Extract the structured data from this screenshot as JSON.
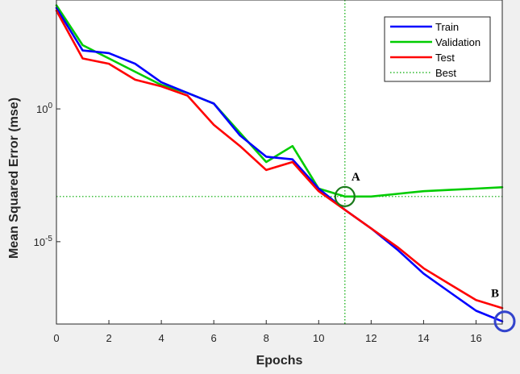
{
  "chart_data": {
    "type": "line",
    "title": "",
    "xlabel": "Epochs",
    "ylabel": "Mean Squared Error  (mse)",
    "xlim": [
      0,
      17
    ],
    "ylim_log10": [
      -8.1,
      4.1
    ],
    "yscale": "log",
    "x_ticks": [
      0,
      2,
      4,
      6,
      8,
      10,
      12,
      14,
      16
    ],
    "x_tick_labels": [
      "0",
      "2",
      "4",
      "6",
      "8",
      "10",
      "12",
      "14",
      "16"
    ],
    "y_ticks_log10": [
      0,
      -5
    ],
    "y_tick_mantissa": "10",
    "y_tick_exponents": [
      "0",
      "-5"
    ],
    "grid": false,
    "legend_position": "top-right",
    "series": [
      {
        "name": "Train",
        "color": "#0000ff",
        "style": "solid",
        "x": [
          0,
          1,
          2,
          3,
          4,
          5,
          6,
          7,
          8,
          9,
          10,
          11,
          12,
          13,
          14,
          15,
          16,
          17
        ],
        "y_log10": [
          3.8,
          2.2,
          2.1,
          1.7,
          1.0,
          0.6,
          0.2,
          -1.0,
          -1.8,
          -1.9,
          -3.0,
          -3.8,
          -4.5,
          -5.3,
          -6.2,
          -6.9,
          -7.6,
          -8.0
        ]
      },
      {
        "name": "Validation",
        "color": "#00cc00",
        "style": "solid",
        "x": [
          0,
          1,
          2,
          3,
          4,
          5,
          6,
          7,
          8,
          9,
          10,
          11,
          12,
          13,
          14,
          15,
          16,
          17
        ],
        "y_log10": [
          3.9,
          2.4,
          1.9,
          1.4,
          0.9,
          0.6,
          0.2,
          -0.9,
          -2.0,
          -1.4,
          -3.0,
          -3.3,
          -3.3,
          -3.2,
          -3.1,
          -3.05,
          -3.0,
          -2.95
        ]
      },
      {
        "name": "Test",
        "color": "#ff0000",
        "style": "solid",
        "x": [
          0,
          1,
          2,
          3,
          4,
          5,
          6,
          7,
          8,
          9,
          10,
          11,
          12,
          13,
          14,
          15,
          16,
          17
        ],
        "y_log10": [
          3.7,
          1.9,
          1.7,
          1.1,
          0.85,
          0.5,
          -0.6,
          -1.4,
          -2.3,
          -2.0,
          -3.1,
          -3.8,
          -4.5,
          -5.2,
          -6.0,
          -6.6,
          -7.2,
          -7.5
        ]
      }
    ],
    "best": {
      "name": "Best",
      "color": "#00aa00",
      "style": "dotted",
      "epoch": 11,
      "value_log10": -3.3
    },
    "annotations": [
      {
        "label": "A",
        "x": 11,
        "y_log10": -3.3,
        "marker_color": "#1a7a1a"
      },
      {
        "label": "B",
        "x": 17,
        "y_log10": -8.0,
        "marker_color": "#3344cc"
      }
    ]
  }
}
